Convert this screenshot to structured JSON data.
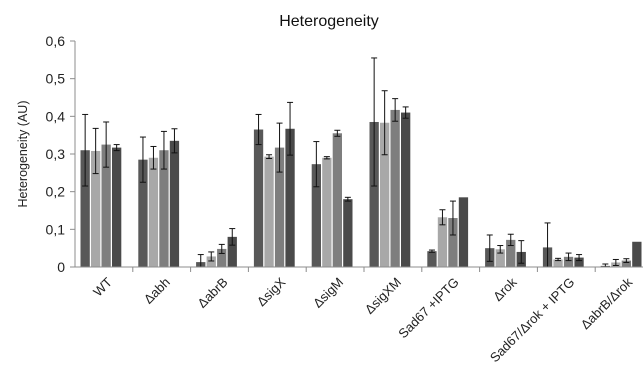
{
  "chart_data": {
    "type": "bar",
    "title": "Heterogeneity",
    "xlabel": "",
    "ylabel": "Heterogeneity (AU)",
    "ylim": [
      0,
      0.6
    ],
    "yticks": [
      "0",
      "0,1",
      "0,2",
      "0,3",
      "0,4",
      "0,5",
      "0,6"
    ],
    "grid": false,
    "legend": "none",
    "categories": [
      "WT",
      "Δabh",
      "ΔabrB",
      "ΔsigX",
      "ΔsigM",
      "ΔsigXM",
      "Sad67 +IPTG",
      "Δrok",
      "Sad67/Δrok + IPTG",
      "ΔabrB/Δrok"
    ],
    "series": [
      {
        "values": [
          0.31,
          0.285,
          0.013,
          0.365,
          0.273,
          0.385,
          0.042,
          0.05,
          0.052,
          0.003
        ],
        "errors": [
          0.095,
          0.06,
          0.02,
          0.04,
          0.06,
          0.17,
          0.003,
          0.035,
          0.065,
          0.005
        ],
        "color": "#585858"
      },
      {
        "values": [
          0.308,
          0.29,
          0.028,
          0.293,
          0.29,
          0.383,
          0.132,
          0.047,
          0.02,
          0.012
        ],
        "errors": [
          0.06,
          0.03,
          0.012,
          0.005,
          0.003,
          0.085,
          0.02,
          0.01,
          0.003,
          0.008
        ],
        "color": "#a8a8a8"
      },
      {
        "values": [
          0.325,
          0.31,
          0.048,
          0.317,
          0.355,
          0.417,
          0.13,
          0.072,
          0.027,
          0.017
        ],
        "errors": [
          0.06,
          0.05,
          0.012,
          0.065,
          0.008,
          0.03,
          0.045,
          0.015,
          0.01,
          0.005
        ],
        "color": "#7e7e7e"
      },
      {
        "values": [
          0.317,
          0.335,
          0.08,
          0.367,
          0.18,
          0.41,
          0.185,
          0.04,
          0.025,
          0.067
        ],
        "errors": [
          0.008,
          0.032,
          0.022,
          0.07,
          0.005,
          0.015,
          0.0,
          0.03,
          0.008,
          0.0
        ],
        "color": "#4a4a4a"
      }
    ]
  }
}
